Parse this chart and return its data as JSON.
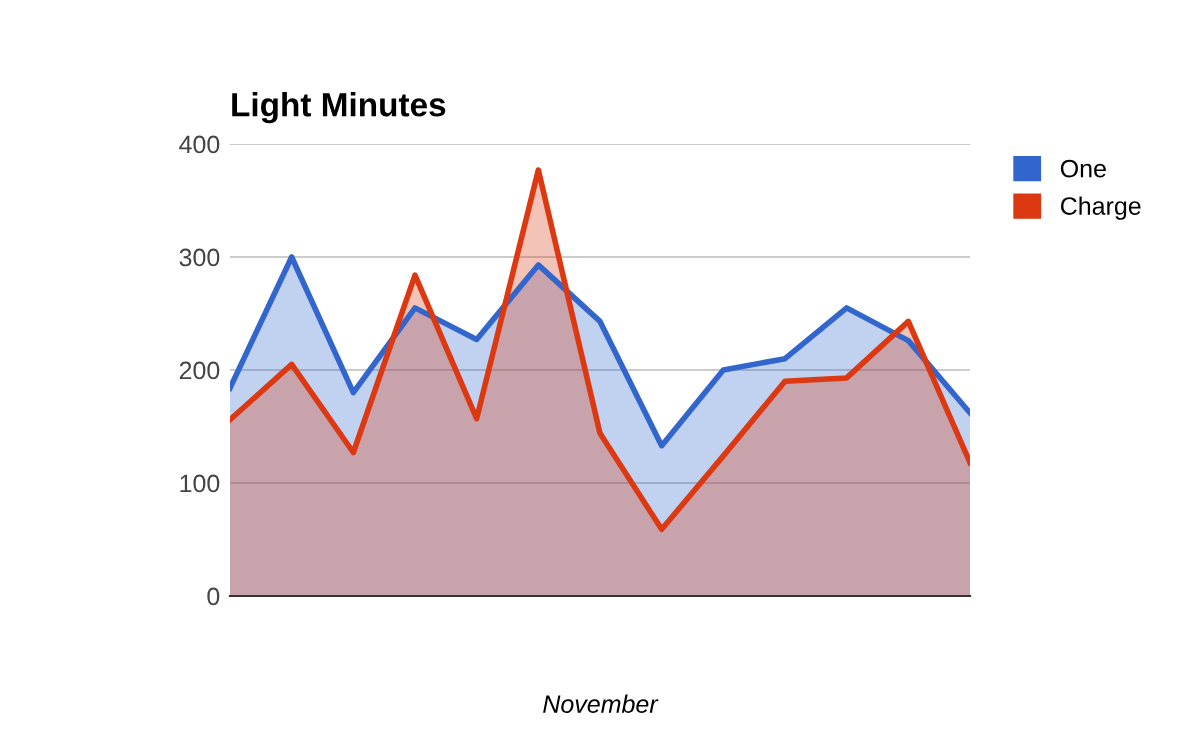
{
  "chart_data": {
    "type": "area",
    "title": "Light Minutes",
    "xlabel": "November",
    "categories": [
      null,
      null,
      null,
      null,
      null,
      null,
      null,
      null,
      null,
      null,
      null,
      null,
      null
    ],
    "series": [
      {
        "name": "One",
        "color": "#3366cc",
        "values": [
          184,
          300,
          180,
          255,
          227,
          293,
          243,
          133,
          200,
          210,
          255,
          226,
          162
        ]
      },
      {
        "name": "Charge",
        "color": "#dc3912",
        "values": [
          156,
          205,
          127,
          284,
          157,
          377,
          144,
          59,
          124,
          190,
          193,
          243,
          118
        ]
      }
    ],
    "ylim": [
      0,
      400
    ],
    "yticks": [
      0,
      100,
      200,
      300,
      400
    ],
    "grid": "y",
    "legend": "top right"
  }
}
